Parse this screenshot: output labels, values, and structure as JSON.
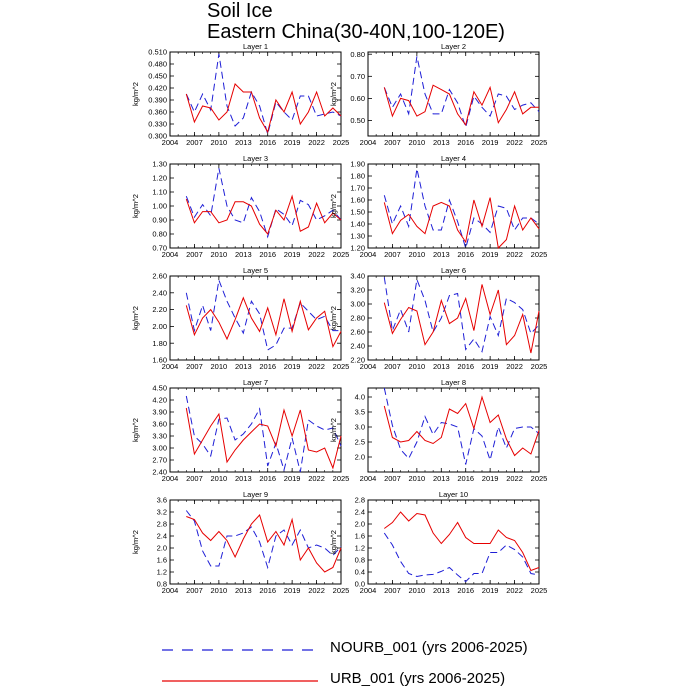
{
  "title": "Soil Ice",
  "subtitle": "Eastern China(30-40N,100-120E)",
  "legend": [
    {
      "name": "NOURB_001 (yrs 2006-2025)",
      "color": "#1f1fd6",
      "dash": "dashed"
    },
    {
      "name": "URB_001 (yrs 2006-2025)",
      "color": "#e60000",
      "dash": "solid"
    }
  ],
  "chart_data": [
    {
      "type": "line",
      "title": "Layer 1",
      "ylabel": "kg/m^2",
      "x": [
        2006,
        2007,
        2008,
        2009,
        2010,
        2011,
        2012,
        2013,
        2014,
        2015,
        2016,
        2017,
        2018,
        2019,
        2020,
        2021,
        2022,
        2023,
        2024,
        2025
      ],
      "xlim": [
        2004,
        2025
      ],
      "xticks": [
        "2004",
        "2007",
        "2010",
        "2013",
        "2016",
        "2019",
        "2022",
        "2025"
      ],
      "ylim": [
        0.3,
        0.51
      ],
      "yticks": [
        "0.300",
        "0.330",
        "0.360",
        "0.390",
        "0.420",
        "0.450",
        "0.480",
        "0.510"
      ],
      "series": [
        {
          "name": "NOURB_001",
          "values": [
            0.405,
            0.36,
            0.405,
            0.365,
            0.505,
            0.375,
            0.325,
            0.345,
            0.41,
            0.375,
            0.305,
            0.385,
            0.36,
            0.34,
            0.4,
            0.4,
            0.35,
            0.355,
            0.36,
            0.35
          ]
        },
        {
          "name": "URB_001",
          "values": [
            0.405,
            0.335,
            0.375,
            0.37,
            0.34,
            0.36,
            0.43,
            0.41,
            0.41,
            0.345,
            0.31,
            0.39,
            0.36,
            0.41,
            0.33,
            0.36,
            0.41,
            0.35,
            0.37,
            0.35
          ]
        }
      ]
    },
    {
      "type": "line",
      "title": "Layer 2",
      "ylabel": "kg/m^2",
      "x": [
        2006,
        2007,
        2008,
        2009,
        2010,
        2011,
        2012,
        2013,
        2014,
        2015,
        2016,
        2017,
        2018,
        2019,
        2020,
        2021,
        2022,
        2023,
        2024,
        2025
      ],
      "xlim": [
        2004,
        2025
      ],
      "xticks": [
        "2004",
        "2007",
        "2010",
        "2013",
        "2016",
        "2019",
        "2022",
        "2025"
      ],
      "ylim": [
        0.43,
        0.81
      ],
      "yticks": [
        "0.50",
        "0.60",
        "0.70",
        "0.80"
      ],
      "series": [
        {
          "name": "NOURB_001",
          "values": [
            0.65,
            0.56,
            0.62,
            0.53,
            0.79,
            0.62,
            0.53,
            0.53,
            0.64,
            0.58,
            0.47,
            0.61,
            0.56,
            0.52,
            0.62,
            0.61,
            0.55,
            0.57,
            0.58,
            0.54
          ]
        },
        {
          "name": "URB_001",
          "values": [
            0.65,
            0.52,
            0.6,
            0.59,
            0.52,
            0.54,
            0.66,
            0.64,
            0.62,
            0.53,
            0.48,
            0.63,
            0.57,
            0.65,
            0.49,
            0.55,
            0.63,
            0.53,
            0.56,
            0.56
          ]
        }
      ]
    },
    {
      "type": "line",
      "title": "Layer 3",
      "ylabel": "kg/m^2",
      "x": [
        2006,
        2007,
        2008,
        2009,
        2010,
        2011,
        2012,
        2013,
        2014,
        2015,
        2016,
        2017,
        2018,
        2019,
        2020,
        2021,
        2022,
        2023,
        2024,
        2025
      ],
      "xlim": [
        2004,
        2025
      ],
      "xticks": [
        "2004",
        "2007",
        "2010",
        "2013",
        "2016",
        "2019",
        "2022",
        "2025"
      ],
      "ylim": [
        0.7,
        1.3
      ],
      "yticks": [
        "0.70",
        "0.80",
        "0.90",
        "1.00",
        "1.10",
        "1.20",
        "1.30"
      ],
      "series": [
        {
          "name": "NOURB_001",
          "values": [
            1.07,
            0.92,
            1.01,
            0.93,
            1.27,
            1.0,
            0.9,
            0.88,
            1.06,
            0.96,
            0.78,
            0.98,
            0.94,
            0.86,
            1.04,
            1.01,
            0.9,
            0.93,
            0.97,
            0.9
          ]
        },
        {
          "name": "URB_001",
          "values": [
            1.05,
            0.88,
            0.96,
            0.96,
            0.88,
            0.9,
            1.03,
            1.03,
            1.0,
            0.87,
            0.8,
            0.97,
            0.9,
            1.07,
            0.82,
            0.85,
            1.02,
            0.88,
            0.95,
            0.9
          ]
        }
      ]
    },
    {
      "type": "line",
      "title": "Layer 4",
      "ylabel": "kg/m^2",
      "x": [
        2006,
        2007,
        2008,
        2009,
        2010,
        2011,
        2012,
        2013,
        2014,
        2015,
        2016,
        2017,
        2018,
        2019,
        2020,
        2021,
        2022,
        2023,
        2024,
        2025
      ],
      "xlim": [
        2004,
        2025
      ],
      "xticks": [
        "2004",
        "2007",
        "2010",
        "2013",
        "2016",
        "2019",
        "2022",
        "2025"
      ],
      "ylim": [
        1.2,
        1.9
      ],
      "yticks": [
        "1.20",
        "1.30",
        "1.40",
        "1.50",
        "1.60",
        "1.70",
        "1.80",
        "1.90"
      ],
      "series": [
        {
          "name": "NOURB_001",
          "values": [
            1.64,
            1.4,
            1.55,
            1.38,
            1.86,
            1.55,
            1.35,
            1.35,
            1.6,
            1.42,
            1.2,
            1.45,
            1.4,
            1.33,
            1.55,
            1.53,
            1.35,
            1.45,
            1.45,
            1.4
          ]
        },
        {
          "name": "URB_001",
          "values": [
            1.58,
            1.32,
            1.43,
            1.48,
            1.38,
            1.32,
            1.55,
            1.58,
            1.55,
            1.35,
            1.25,
            1.6,
            1.38,
            1.62,
            1.2,
            1.27,
            1.55,
            1.35,
            1.45,
            1.36
          ]
        }
      ]
    },
    {
      "type": "line",
      "title": "Layer 5",
      "ylabel": "kg/m^2",
      "x": [
        2006,
        2007,
        2008,
        2009,
        2010,
        2011,
        2012,
        2013,
        2014,
        2015,
        2016,
        2017,
        2018,
        2019,
        2020,
        2021,
        2022,
        2023,
        2024,
        2025
      ],
      "xlim": [
        2004,
        2025
      ],
      "xticks": [
        "2004",
        "2007",
        "2010",
        "2013",
        "2016",
        "2019",
        "2022",
        "2025"
      ],
      "ylim": [
        1.6,
        2.6
      ],
      "yticks": [
        "1.60",
        "1.80",
        "2.00",
        "2.20",
        "2.40",
        "2.60"
      ],
      "series": [
        {
          "name": "NOURB_001",
          "values": [
            2.4,
            1.95,
            2.25,
            1.95,
            2.55,
            2.3,
            2.1,
            1.92,
            2.3,
            2.15,
            1.72,
            1.78,
            1.98,
            1.98,
            2.28,
            2.18,
            2.08,
            2.12,
            1.95,
            1.95
          ]
        },
        {
          "name": "URB_001",
          "values": [
            2.25,
            1.9,
            2.1,
            2.2,
            2.05,
            1.85,
            2.08,
            2.34,
            2.1,
            1.94,
            2.22,
            1.9,
            2.33,
            1.94,
            2.3,
            1.96,
            2.1,
            2.18,
            1.76,
            1.94
          ]
        }
      ]
    },
    {
      "type": "line",
      "title": "Layer 6",
      "ylabel": "kg/m^2",
      "x": [
        2006,
        2007,
        2008,
        2009,
        2010,
        2011,
        2012,
        2013,
        2014,
        2015,
        2016,
        2017,
        2018,
        2019,
        2020,
        2021,
        2022,
        2023,
        2024,
        2025
      ],
      "xlim": [
        2004,
        2025
      ],
      "xticks": [
        "2004",
        "2007",
        "2010",
        "2013",
        "2016",
        "2019",
        "2022",
        "2025"
      ],
      "ylim": [
        2.2,
        3.4
      ],
      "yticks": [
        "2.20",
        "2.40",
        "2.60",
        "2.80",
        "3.00",
        "3.20",
        "3.40"
      ],
      "series": [
        {
          "name": "NOURB_001",
          "values": [
            3.38,
            2.62,
            2.92,
            2.6,
            3.35,
            3.05,
            2.6,
            2.8,
            3.12,
            3.15,
            2.35,
            2.5,
            2.32,
            2.82,
            2.55,
            3.08,
            3.02,
            2.92,
            2.58,
            2.7
          ]
        },
        {
          "name": "URB_001",
          "values": [
            3.02,
            2.58,
            2.78,
            2.95,
            2.9,
            2.42,
            2.6,
            3.05,
            2.72,
            2.8,
            3.08,
            2.62,
            3.28,
            2.85,
            3.2,
            2.42,
            2.55,
            2.85,
            2.3,
            2.9
          ]
        }
      ]
    },
    {
      "type": "line",
      "title": "Layer 7",
      "ylabel": "kg/m^2",
      "x": [
        2006,
        2007,
        2008,
        2009,
        2010,
        2011,
        2012,
        2013,
        2014,
        2015,
        2016,
        2017,
        2018,
        2019,
        2020,
        2021,
        2022,
        2023,
        2024,
        2025
      ],
      "xlim": [
        2004,
        2025
      ],
      "xticks": [
        "2004",
        "2007",
        "2010",
        "2013",
        "2016",
        "2019",
        "2022",
        "2025"
      ],
      "ylim": [
        2.4,
        4.5
      ],
      "yticks": [
        "2.40",
        "2.70",
        "3.00",
        "3.30",
        "3.60",
        "3.90",
        "4.20",
        "4.50"
      ],
      "series": [
        {
          "name": "NOURB_001",
          "values": [
            4.3,
            3.3,
            3.1,
            2.8,
            3.72,
            3.75,
            3.2,
            3.35,
            3.6,
            3.98,
            2.55,
            3.12,
            2.45,
            3.25,
            2.4,
            3.7,
            3.55,
            3.45,
            3.5,
            3.05
          ]
        },
        {
          "name": "URB_001",
          "values": [
            4.0,
            2.85,
            3.2,
            3.55,
            3.85,
            2.65,
            2.95,
            3.2,
            3.4,
            3.6,
            3.55,
            3.05,
            3.95,
            3.3,
            3.95,
            2.95,
            2.9,
            3.0,
            2.5,
            3.3
          ]
        }
      ]
    },
    {
      "type": "line",
      "title": "Layer 8",
      "ylabel": "kg/m^2",
      "x": [
        2006,
        2007,
        2008,
        2009,
        2010,
        2011,
        2012,
        2013,
        2014,
        2015,
        2016,
        2017,
        2018,
        2019,
        2020,
        2021,
        2022,
        2023,
        2024,
        2025
      ],
      "xlim": [
        2004,
        2025
      ],
      "xticks": [
        "2004",
        "2007",
        "2010",
        "2013",
        "2016",
        "2019",
        "2022",
        "2025"
      ],
      "ylim": [
        1.5,
        4.3
      ],
      "yticks": [
        "2.0",
        "2.5",
        "3.0",
        "3.5",
        "4.0"
      ],
      "series": [
        {
          "name": "NOURB_001",
          "values": [
            4.3,
            3.05,
            2.25,
            1.95,
            2.5,
            3.35,
            2.75,
            3.15,
            3.1,
            3.0,
            1.75,
            2.95,
            2.7,
            1.9,
            3.0,
            2.3,
            2.95,
            3.0,
            3.0,
            2.78
          ]
        },
        {
          "name": "URB_001",
          "values": [
            3.7,
            2.65,
            2.5,
            2.55,
            2.85,
            2.55,
            2.45,
            2.65,
            3.6,
            3.45,
            3.78,
            2.95,
            4.0,
            3.15,
            3.4,
            2.6,
            2.05,
            2.3,
            2.1,
            2.88
          ]
        }
      ]
    },
    {
      "type": "line",
      "title": "Layer 9",
      "ylabel": "kg/m^2",
      "x": [
        2006,
        2007,
        2008,
        2009,
        2010,
        2011,
        2012,
        2013,
        2014,
        2015,
        2016,
        2017,
        2018,
        2019,
        2020,
        2021,
        2022,
        2023,
        2024,
        2025
      ],
      "xlim": [
        2004,
        2025
      ],
      "xticks": [
        "2004",
        "2007",
        "2010",
        "2013",
        "2016",
        "2019",
        "2022",
        "2025"
      ],
      "ylim": [
        0.8,
        3.6
      ],
      "yticks": [
        "0.8",
        "1.2",
        "1.6",
        "2.0",
        "2.4",
        "2.8",
        "3.2",
        "3.6"
      ],
      "series": [
        {
          "name": "NOURB_001",
          "values": [
            3.25,
            2.9,
            1.9,
            1.4,
            1.4,
            2.4,
            2.4,
            2.5,
            2.7,
            2.2,
            1.35,
            2.4,
            2.6,
            2.1,
            2.6,
            2.0,
            2.1,
            2.0,
            1.75,
            2.05
          ]
        },
        {
          "name": "URB_001",
          "values": [
            3.05,
            2.95,
            2.5,
            2.25,
            2.55,
            2.25,
            1.7,
            2.3,
            2.8,
            3.1,
            2.2,
            2.55,
            2.1,
            2.95,
            1.6,
            2.0,
            1.5,
            1.2,
            1.35,
            2.0
          ]
        }
      ]
    },
    {
      "type": "line",
      "title": "Layer 10",
      "ylabel": "kg/m^2",
      "x": [
        2006,
        2007,
        2008,
        2009,
        2010,
        2011,
        2012,
        2013,
        2014,
        2015,
        2016,
        2017,
        2018,
        2019,
        2020,
        2021,
        2022,
        2023,
        2024,
        2025
      ],
      "xlim": [
        2004,
        2025
      ],
      "xticks": [
        "2004",
        "2007",
        "2010",
        "2013",
        "2016",
        "2019",
        "2022",
        "2025"
      ],
      "ylim": [
        0.0,
        2.8
      ],
      "yticks": [
        "0.0",
        "0.4",
        "0.8",
        "1.2",
        "1.6",
        "2.0",
        "2.4",
        "2.8"
      ],
      "series": [
        {
          "name": "NOURB_001",
          "values": [
            1.7,
            1.3,
            0.75,
            0.35,
            0.25,
            0.3,
            0.32,
            0.42,
            0.55,
            0.3,
            0.08,
            0.35,
            0.35,
            1.05,
            1.05,
            1.3,
            1.15,
            0.9,
            0.35,
            0.3
          ]
        },
        {
          "name": "URB_001",
          "values": [
            1.85,
            2.05,
            2.4,
            2.1,
            2.35,
            2.3,
            1.7,
            1.35,
            1.65,
            2.05,
            1.55,
            1.35,
            1.35,
            1.35,
            1.8,
            1.55,
            1.45,
            1.05,
            0.45,
            0.55
          ]
        }
      ]
    }
  ]
}
